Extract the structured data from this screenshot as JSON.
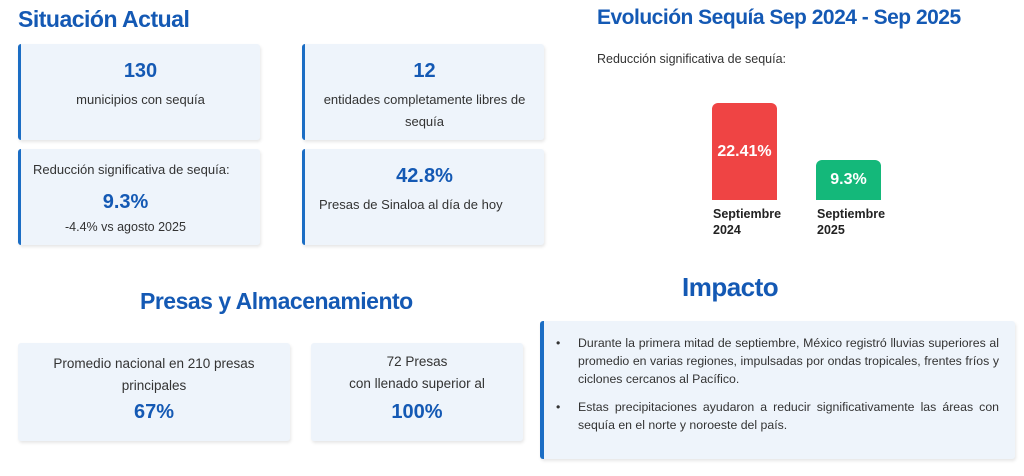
{
  "situacion": {
    "title": "Situación Actual",
    "card1": {
      "value": "130",
      "text": "municipios con sequía"
    },
    "card2": {
      "value": "12",
      "text_line1": "entidades completamente libres de",
      "text_line2": "sequía"
    },
    "card3": {
      "heading": "Reducción significativa de sequía:",
      "value": "9.3%",
      "note": "-4.4% vs agosto 2025"
    },
    "card4": {
      "value": "42.8%",
      "text": "Presas de Sinaloa al día de hoy"
    }
  },
  "evolucion": {
    "title": "Evolución Sequía Sep 2024 - Sep 2025",
    "subtitle": "Reducción significativa de sequía:"
  },
  "chart_data": {
    "type": "bar",
    "categories": [
      "Septiembre 2024",
      "Septiembre 2025"
    ],
    "category_lines": [
      [
        "Septiembre",
        "2024"
      ],
      [
        "Septiembre",
        "2025"
      ]
    ],
    "values": [
      22.41,
      9.3
    ],
    "value_labels": [
      "22.41%",
      "9.3%"
    ],
    "colors": [
      "#ef4444",
      "#14b87a"
    ],
    "ylim": [
      0,
      24
    ]
  },
  "presas": {
    "title": "Presas y Almacenamiento",
    "card1": {
      "line1": "Promedio nacional en 210 presas",
      "line2": "principales",
      "value": "67%"
    },
    "card2": {
      "line1": "72 Presas",
      "line2": "con llenado superior al",
      "value": "100%"
    }
  },
  "impacto": {
    "title": "Impacto",
    "bullet": "•",
    "items": [
      "Durante la primera mitad de septiembre, México registró lluvias superiores al promedio en varias regiones, impulsadas por ondas tropicales, frentes fríos y ciclones cercanos al Pacífico.",
      "Estas precipitaciones ayudaron a reducir significativamente las áreas con sequía en el norte y noroeste del país."
    ]
  }
}
